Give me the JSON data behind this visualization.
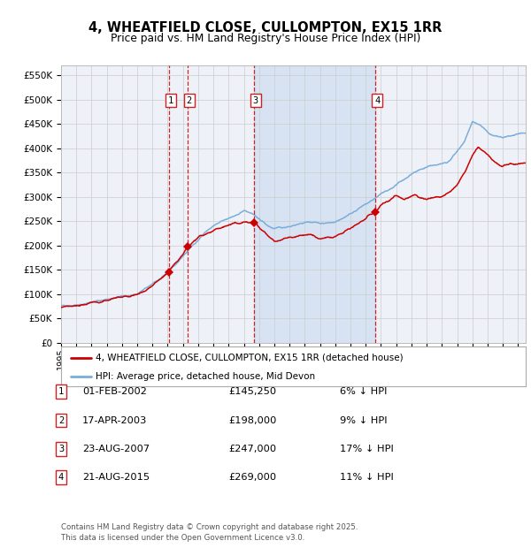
{
  "title": "4, WHEATFIELD CLOSE, CULLOMPTON, EX15 1RR",
  "subtitle": "Price paid vs. HM Land Registry's House Price Index (HPI)",
  "ylim": [
    0,
    570000
  ],
  "yticks": [
    0,
    50000,
    100000,
    150000,
    200000,
    250000,
    300000,
    350000,
    400000,
    450000,
    500000,
    550000
  ],
  "xlim_start": 1995.0,
  "xlim_end": 2025.5,
  "background_color": "#ffffff",
  "plot_bg_color": "#eef2f8",
  "grid_color": "#cccccc",
  "hpi_color": "#7aaddb",
  "price_color": "#cc0000",
  "dashed_line_color": "#cc0000",
  "transactions": [
    {
      "label": "1",
      "date_str": "01-FEB-2002",
      "price": 145250,
      "date_num": 2002.08
    },
    {
      "label": "2",
      "date_str": "17-APR-2003",
      "price": 198000,
      "date_num": 2003.29
    },
    {
      "label": "3",
      "date_str": "23-AUG-2007",
      "price": 247000,
      "date_num": 2007.64
    },
    {
      "label": "4",
      "date_str": "21-AUG-2015",
      "price": 269000,
      "date_num": 2015.64
    }
  ],
  "transaction_notes": [
    {
      "label": "1",
      "date_str": "01-FEB-2002",
      "price_str": "£145,250",
      "pct": "6%",
      "dir": "↓"
    },
    {
      "label": "2",
      "date_str": "17-APR-2003",
      "price_str": "£198,000",
      "pct": "9%",
      "dir": "↓"
    },
    {
      "label": "3",
      "date_str": "23-AUG-2007",
      "price_str": "£247,000",
      "pct": "17%",
      "dir": "↓"
    },
    {
      "label": "4",
      "date_str": "21-AUG-2015",
      "price_str": "£269,000",
      "pct": "11%",
      "dir": "↓"
    }
  ],
  "legend_price_label": "4, WHEATFIELD CLOSE, CULLOMPTON, EX15 1RR (detached house)",
  "legend_hpi_label": "HPI: Average price, detached house, Mid Devon",
  "footer": "Contains HM Land Registry data © Crown copyright and database right 2025.\nThis data is licensed under the Open Government Licence v3.0.",
  "shaded_region": [
    2007.64,
    2015.64
  ],
  "hpi_key_years": [
    1995.0,
    1995.5,
    1996.0,
    1996.5,
    1997.0,
    1997.5,
    1998.0,
    1998.5,
    1999.0,
    1999.5,
    2000.0,
    2000.5,
    2001.0,
    2001.5,
    2002.0,
    2002.5,
    2003.0,
    2003.5,
    2004.0,
    2004.5,
    2005.0,
    2005.5,
    2006.0,
    2006.5,
    2007.0,
    2007.5,
    2008.0,
    2008.5,
    2009.0,
    2009.5,
    2010.0,
    2010.5,
    2011.0,
    2011.5,
    2012.0,
    2012.5,
    2013.0,
    2013.5,
    2014.0,
    2014.5,
    2015.0,
    2015.5,
    2016.0,
    2016.5,
    2017.0,
    2017.5,
    2018.0,
    2018.5,
    2019.0,
    2019.5,
    2020.0,
    2020.5,
    2021.0,
    2021.5,
    2022.0,
    2022.5,
    2023.0,
    2023.5,
    2024.0,
    2024.5,
    2025.5
  ],
  "hpi_key_vals": [
    75000,
    76000,
    78000,
    80000,
    83000,
    86000,
    89000,
    92000,
    95000,
    97000,
    100000,
    110000,
    120000,
    132000,
    145000,
    160000,
    178000,
    195000,
    212000,
    228000,
    240000,
    248000,
    255000,
    263000,
    272000,
    265000,
    255000,
    242000,
    234000,
    236000,
    240000,
    244000,
    247000,
    248000,
    246000,
    247000,
    250000,
    256000,
    265000,
    275000,
    285000,
    294000,
    305000,
    315000,
    325000,
    336000,
    347000,
    355000,
    362000,
    366000,
    368000,
    375000,
    392000,
    415000,
    455000,
    448000,
    432000,
    425000,
    422000,
    425000,
    430000
  ],
  "price_key_years": [
    1995.0,
    1995.5,
    1996.0,
    1996.5,
    1997.0,
    1997.5,
    1998.0,
    1998.5,
    1999.0,
    1999.5,
    2000.0,
    2000.5,
    2001.0,
    2001.5,
    2002.08,
    2002.5,
    2003.0,
    2003.29,
    2003.8,
    2004.2,
    2004.8,
    2005.3,
    2005.9,
    2006.4,
    2007.0,
    2007.64,
    2008.0,
    2008.5,
    2009.0,
    2009.5,
    2010.0,
    2010.5,
    2011.0,
    2011.5,
    2012.0,
    2012.5,
    2013.0,
    2013.5,
    2014.0,
    2014.5,
    2015.0,
    2015.64,
    2016.0,
    2016.5,
    2017.0,
    2017.5,
    2018.0,
    2018.3,
    2018.6,
    2019.0,
    2019.5,
    2020.0,
    2020.5,
    2021.0,
    2021.5,
    2022.0,
    2022.4,
    2022.8,
    2023.2,
    2023.6,
    2024.0,
    2024.5,
    2025.5
  ],
  "price_key_vals": [
    72000,
    74000,
    76000,
    78000,
    81000,
    84000,
    87000,
    90000,
    93000,
    95000,
    98000,
    107000,
    117000,
    130000,
    145250,
    162000,
    180000,
    198000,
    210000,
    220000,
    228000,
    235000,
    240000,
    245000,
    248000,
    247000,
    238000,
    222000,
    208000,
    212000,
    217000,
    220000,
    222000,
    220000,
    213000,
    215000,
    218000,
    225000,
    235000,
    245000,
    255000,
    269000,
    282000,
    293000,
    303000,
    295000,
    302000,
    305000,
    298000,
    295000,
    298000,
    300000,
    308000,
    325000,
    350000,
    385000,
    402000,
    392000,
    380000,
    368000,
    362000,
    368000,
    370000
  ]
}
